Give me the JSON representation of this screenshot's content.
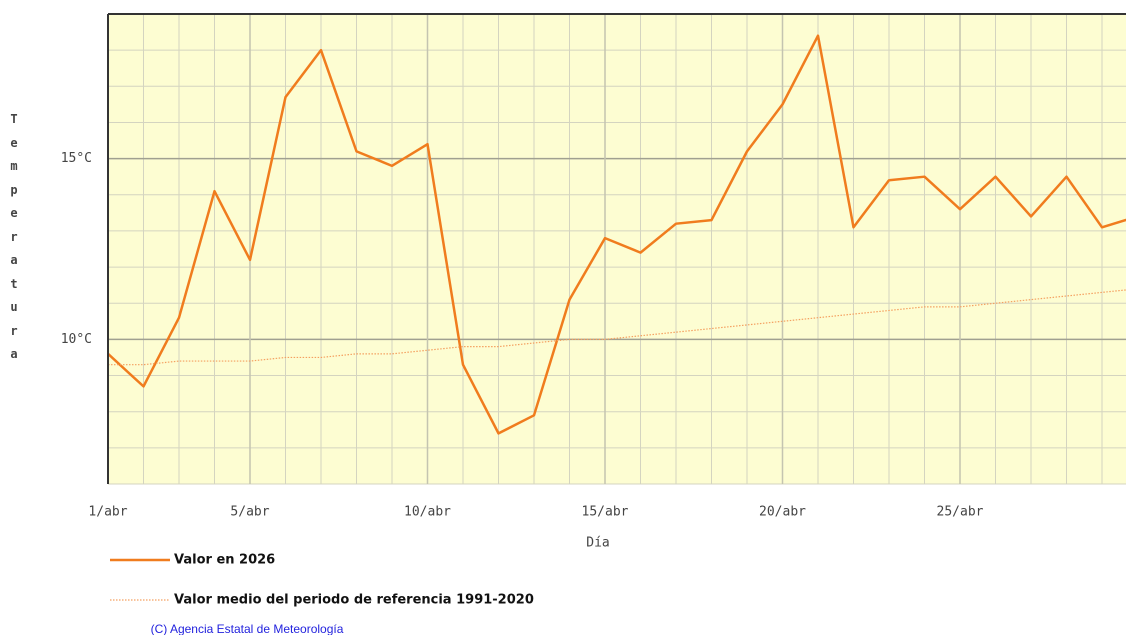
{
  "chart_data": {
    "type": "line",
    "y_axis_label": "Temperatura",
    "x_axis_label": "Día",
    "x": [
      1,
      2,
      3,
      4,
      5,
      6,
      7,
      8,
      9,
      10,
      11,
      12,
      13,
      14,
      15,
      16,
      17,
      18,
      19,
      20,
      21,
      22,
      23,
      24,
      25,
      26,
      27,
      28,
      29,
      30
    ],
    "series": [
      {
        "name": "Valor en 2026",
        "color": "#f07c1e",
        "line_style": "solid",
        "values": [
          9.6,
          8.7,
          10.6,
          14.1,
          12.2,
          16.7,
          18.0,
          15.2,
          14.8,
          15.4,
          9.3,
          7.4,
          7.9,
          11.1,
          12.8,
          12.4,
          13.2,
          13.3,
          15.2,
          16.5,
          18.4,
          13.1,
          14.4,
          14.5,
          13.6,
          14.5,
          13.4,
          14.5,
          13.1,
          13.4
        ]
      },
      {
        "name": "Valor medio del periodo de referencia 1991-2020",
        "color": "#f4a060",
        "line_style": "dotted",
        "values": [
          9.3,
          9.3,
          9.4,
          9.4,
          9.4,
          9.5,
          9.5,
          9.6,
          9.6,
          9.7,
          9.8,
          9.8,
          9.9,
          10.0,
          10.0,
          10.1,
          10.2,
          10.3,
          10.4,
          10.5,
          10.6,
          10.7,
          10.8,
          10.9,
          10.9,
          11.0,
          11.1,
          11.2,
          11.3,
          11.4
        ]
      }
    ],
    "xlim": [
      1,
      30
    ],
    "xticks": [
      {
        "value": 1,
        "label": "1/abr"
      },
      {
        "value": 5,
        "label": "5/abr"
      },
      {
        "value": 10,
        "label": "10/abr"
      },
      {
        "value": 15,
        "label": "15/abr"
      },
      {
        "value": 20,
        "label": "20/abr"
      },
      {
        "value": 25,
        "label": "25/abr"
      }
    ],
    "minor_xticks": [
      2,
      3,
      4,
      6,
      7,
      8,
      9,
      11,
      12,
      13,
      14,
      16,
      17,
      18,
      19,
      21,
      22,
      23,
      24,
      26,
      27,
      28,
      29,
      30
    ],
    "ylim": [
      6,
      19
    ],
    "yticks": [
      {
        "value": 10,
        "label": "10°C"
      },
      {
        "value": 15,
        "label": "15°C"
      }
    ],
    "minor_yticks": [
      6,
      7,
      8,
      9,
      11,
      12,
      13,
      14,
      16,
      17,
      18,
      19
    ],
    "grid": true,
    "plot_background": "#fdfdd2",
    "credit": "(C) Agencia Estatal de Meteorología"
  }
}
